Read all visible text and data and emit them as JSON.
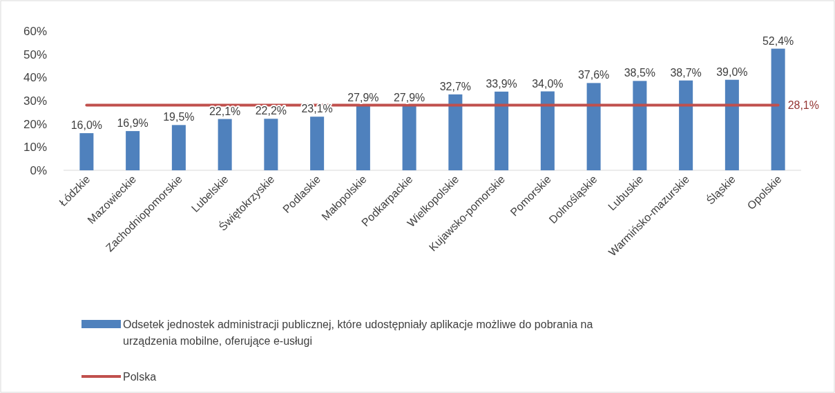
{
  "chart_data": {
    "type": "bar",
    "categories": [
      "Łódzkie",
      "Mazowieckie",
      "Zachodniopomorskie",
      "Lubelskie",
      "Świętokrzyskie",
      "Podlaskie",
      "Małopolskie",
      "Podkarpackie",
      "Wielkopolskie",
      "Kujawsko-pomorskie",
      "Pomorskie",
      "Dolnośląskie",
      "Lubuskie",
      "Warmińsko-mazurskie",
      "Śląskie",
      "Opolskie"
    ],
    "series": [
      {
        "name": "Odsetek jednostek administracji publicznej, które udostępniały aplikacje możliwe do pobrania na urządzenia mobilne, oferujące e-usługi",
        "color": "#4f81bd",
        "values": [
          16.0,
          16.9,
          19.5,
          22.1,
          22.2,
          23.1,
          27.9,
          27.9,
          32.7,
          33.9,
          34.0,
          37.6,
          38.5,
          38.7,
          39.0,
          52.4
        ],
        "value_labels": [
          "16,0%",
          "16,9%",
          "19,5%",
          "22,1%",
          "22,2%",
          "23,1%",
          "27,9%",
          "27,9%",
          "32,7%",
          "33,9%",
          "34,0%",
          "37,6%",
          "38,5%",
          "38,7%",
          "39,0%",
          "52,4%"
        ]
      },
      {
        "name": "Polska",
        "type": "line",
        "color": "#c0504d",
        "values": [
          28.1,
          28.1,
          28.1,
          28.1,
          28.1,
          28.1,
          28.1,
          28.1,
          28.1,
          28.1,
          28.1,
          28.1,
          28.1,
          28.1,
          28.1,
          28.1
        ],
        "value_labels": [
          null,
          null,
          null,
          null,
          null,
          null,
          null,
          null,
          null,
          null,
          null,
          null,
          null,
          null,
          null,
          "28,1%"
        ]
      }
    ],
    "ylim": [
      0,
      60
    ],
    "yticks": [
      {
        "value": 0,
        "label": "0%"
      },
      {
        "value": 10,
        "label": "10%"
      },
      {
        "value": 20,
        "label": "20%"
      },
      {
        "value": 30,
        "label": "30%"
      },
      {
        "value": 40,
        "label": "40%"
      },
      {
        "value": 50,
        "label": "50%"
      },
      {
        "value": 60,
        "label": "60%"
      }
    ],
    "legend": "bottom"
  }
}
